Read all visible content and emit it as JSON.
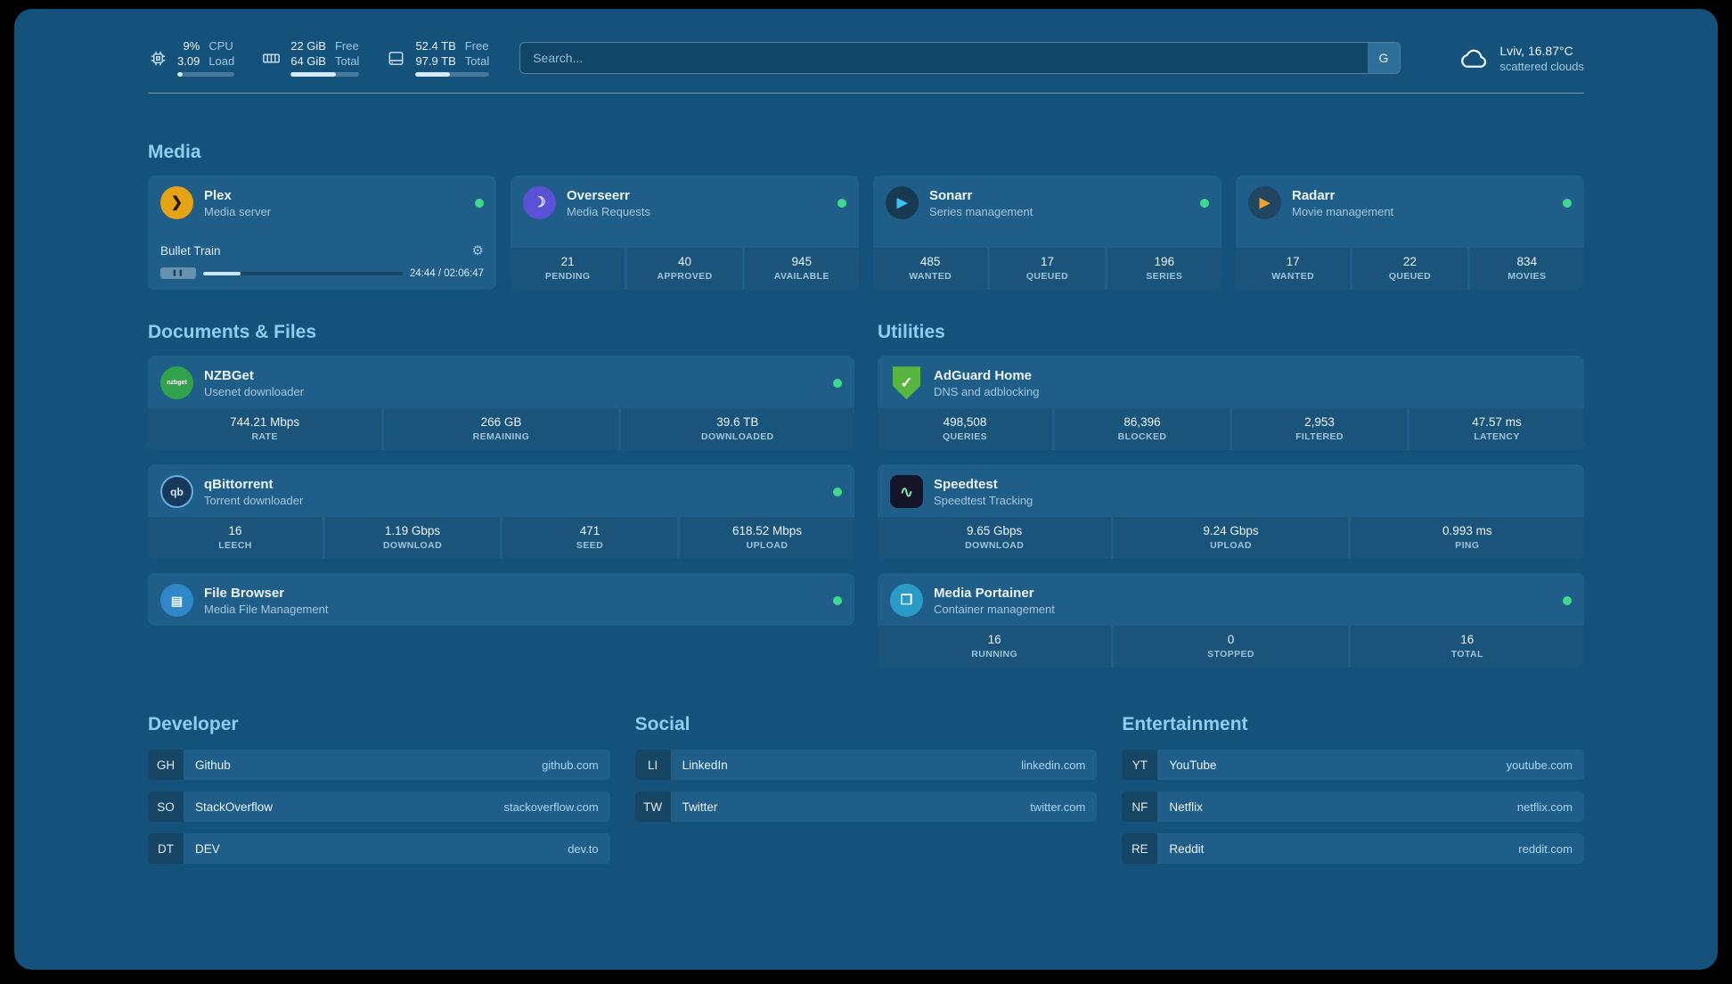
{
  "colors": {
    "background": "#14527b",
    "card": "#1f5e88",
    "tile": "rgba(0,0,0,0.10)",
    "text": "#eaf4fb",
    "muted": "#a4c7dd",
    "heading": "#8fcdf0",
    "link": "#a9d6f5",
    "online": "#3fd98c",
    "divider": "rgba(255,255,255,0.42)",
    "progress_track": "rgba(255,255,255,0.22)",
    "progress_fill": "#d7eaf7",
    "search_button": "#2e6f99"
  },
  "topbar": {
    "resources": [
      {
        "id": "cpu",
        "icon": "cpu-icon",
        "progress_pct": 9,
        "rows": [
          {
            "value": "9%",
            "label": "CPU"
          },
          {
            "value": "3.09",
            "label": "Load"
          }
        ]
      },
      {
        "id": "memory",
        "icon": "memory-icon",
        "progress_pct": 66,
        "rows": [
          {
            "value": "22 GiB",
            "label": "Free"
          },
          {
            "value": "64 GiB",
            "label": "Total"
          }
        ]
      },
      {
        "id": "disk",
        "icon": "disk-icon",
        "progress_pct": 46,
        "rows": [
          {
            "value": "52.4 TB",
            "label": "Free"
          },
          {
            "value": "97.9 TB",
            "label": "Total"
          }
        ]
      }
    ],
    "search": {
      "placeholder": "Search...",
      "provider_label": "G"
    },
    "weather": {
      "icon": "cloud-icon",
      "location_temp": "Lviv, 16.87°C",
      "description": "scattered clouds"
    }
  },
  "groups": {
    "media": {
      "title": "Media",
      "services": [
        {
          "name": "Plex",
          "desc": "Media server",
          "online": true,
          "icon": {
            "name": "plex-icon",
            "shape": "circle",
            "bg": "#e6a313",
            "fg": "#241705",
            "glyph": "❯",
            "glyph_size": 16
          },
          "player": {
            "title": "Bullet Train",
            "settings_glyph": "⚙",
            "pause_glyph": "❚❚",
            "elapsed_total": "24:44 / 02:06:47",
            "progress_pct": 19
          }
        },
        {
          "name": "Overseerr",
          "desc": "Media Requests",
          "online": true,
          "icon": {
            "name": "overseerr-icon",
            "shape": "circle",
            "bg": "#5a51d6",
            "fg": "#e9e7ff",
            "glyph": "☽",
            "glyph_size": 16
          },
          "stats": [
            {
              "value": "21",
              "label": "PENDING"
            },
            {
              "value": "40",
              "label": "APPROVED"
            },
            {
              "value": "945",
              "label": "AVAILABLE"
            }
          ]
        },
        {
          "name": "Sonarr",
          "desc": "Series management",
          "online": true,
          "icon": {
            "name": "sonarr-icon",
            "shape": "circle",
            "bg": "#173a52",
            "fg": "#35c5f4",
            "glyph": "▶",
            "glyph_size": 15
          },
          "stats": [
            {
              "value": "485",
              "label": "WANTED"
            },
            {
              "value": "17",
              "label": "QUEUED"
            },
            {
              "value": "196",
              "label": "SERIES"
            }
          ]
        },
        {
          "name": "Radarr",
          "desc": "Movie management",
          "online": true,
          "icon": {
            "name": "radarr-icon",
            "shape": "circle",
            "bg": "#23283370",
            "fg": "#f0a22b",
            "glyph": "▶",
            "glyph_size": 15
          },
          "stats": [
            {
              "value": "17",
              "label": "WANTED"
            },
            {
              "value": "22",
              "label": "QUEUED"
            },
            {
              "value": "834",
              "label": "MOVIES"
            }
          ]
        }
      ]
    },
    "documents": {
      "title": "Documents & Files",
      "services": [
        {
          "name": "NZBGet",
          "desc": "Usenet downloader",
          "online": true,
          "icon": {
            "name": "nzbget-icon",
            "shape": "circle",
            "bg": "#31a14c",
            "fg": "#ffffff",
            "glyph": "nzbget",
            "glyph_size": 7
          },
          "stats": [
            {
              "value": "744.21 Mbps",
              "label": "RATE"
            },
            {
              "value": "266 GB",
              "label": "REMAINING"
            },
            {
              "value": "39.6 TB",
              "label": "DOWNLOADED"
            }
          ]
        },
        {
          "name": "qBittorrent",
          "desc": "Torrent downloader",
          "online": true,
          "icon": {
            "name": "qbittorrent-icon",
            "shape": "circle",
            "bg": "#19395c",
            "fg": "#cfe9fb",
            "glyph": "qb",
            "glyph_size": 12,
            "border": "#64b1e4"
          },
          "stats": [
            {
              "value": "16",
              "label": "LEECH"
            },
            {
              "value": "1.19 Gbps",
              "label": "DOWNLOAD"
            },
            {
              "value": "471",
              "label": "SEED"
            },
            {
              "value": "618.52 Mbps",
              "label": "UPLOAD"
            }
          ]
        },
        {
          "name": "File Browser",
          "desc": "Media File Management",
          "online": true,
          "icon": {
            "name": "filebrowser-icon",
            "shape": "circle",
            "bg": "#2f86c9",
            "fg": "#ffffff",
            "glyph": "▤",
            "glyph_size": 14
          }
        }
      ]
    },
    "utilities": {
      "title": "Utilities",
      "services": [
        {
          "name": "AdGuard Home",
          "desc": "DNS and adblocking",
          "online": false,
          "icon": {
            "name": "adguard-shield-icon",
            "shape": "shield",
            "bg": "#57b540",
            "fg": "#ffffff",
            "glyph": "✓",
            "glyph_size": 17
          },
          "stats": [
            {
              "value": "498,508",
              "label": "QUERIES"
            },
            {
              "value": "86,396",
              "label": "BLOCKED"
            },
            {
              "value": "2,953",
              "label": "FILTERED"
            },
            {
              "value": "47.57 ms",
              "label": "LATENCY"
            }
          ]
        },
        {
          "name": "Speedtest",
          "desc": "Speedtest Tracking",
          "online": false,
          "icon": {
            "name": "speedtest-icon",
            "shape": "rounded",
            "bg": "#141529",
            "fg": "#7be0a1",
            "glyph": "∿",
            "glyph_size": 18
          },
          "stats": [
            {
              "value": "9.65 Gbps",
              "label": "DOWNLOAD"
            },
            {
              "value": "9.24 Gbps",
              "label": "UPLOAD"
            },
            {
              "value": "0.993 ms",
              "label": "PING"
            }
          ]
        },
        {
          "name": "Media Portainer",
          "desc": "Container management",
          "online": true,
          "icon": {
            "name": "portainer-icon",
            "shape": "circle",
            "bg": "#2a9ac6",
            "fg": "#ffffff",
            "glyph": "❐",
            "glyph_size": 15
          },
          "stats": [
            {
              "value": "16",
              "label": "RUNNING"
            },
            {
              "value": "0",
              "label": "STOPPED"
            },
            {
              "value": "16",
              "label": "TOTAL"
            }
          ]
        }
      ]
    }
  },
  "bookmark_groups": [
    {
      "title": "Developer",
      "items": [
        {
          "abbr": "GH",
          "label": "Github",
          "url": "github.com"
        },
        {
          "abbr": "SO",
          "label": "StackOverflow",
          "url": "stackoverflow.com"
        },
        {
          "abbr": "DT",
          "label": "DEV",
          "url": "dev.to"
        }
      ]
    },
    {
      "title": "Social",
      "items": [
        {
          "abbr": "LI",
          "label": "LinkedIn",
          "url": "linkedin.com"
        },
        {
          "abbr": "TW",
          "label": "Twitter",
          "url": "twitter.com"
        }
      ]
    },
    {
      "title": "Entertainment",
      "items": [
        {
          "abbr": "YT",
          "label": "YouTube",
          "url": "youtube.com"
        },
        {
          "abbr": "NF",
          "label": "Netflix",
          "url": "netflix.com"
        },
        {
          "abbr": "RE",
          "label": "Reddit",
          "url": "reddit.com"
        }
      ]
    }
  ]
}
